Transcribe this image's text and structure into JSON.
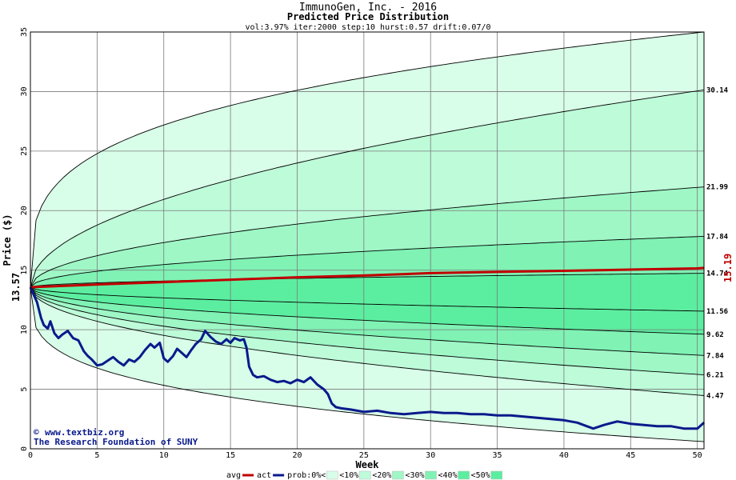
{
  "chart_data": {
    "type": "area",
    "title": "ImmunoGen, Inc. - 2016",
    "subtitle": "Predicted Price Distribution",
    "params": "vol:3.97% iter:2000 step:10 hurst:0.57 drift:0.07/0",
    "xlabel": "Week",
    "ylabel": "Price ($)",
    "xlim": [
      0,
      50.5
    ],
    "ylim": [
      0,
      35
    ],
    "xticks": [
      0,
      5,
      10,
      15,
      20,
      25,
      30,
      35,
      40,
      45,
      50
    ],
    "yticks": [
      0,
      5,
      10,
      15,
      20,
      25,
      30,
      35
    ],
    "grid": true,
    "start_price": 13.57,
    "start_price_label": "13.57",
    "end_avg_label": "15.19",
    "percentile_labels": [
      "30.14",
      "21.99",
      "17.84",
      "14.74",
      "11.56",
      "9.62",
      "7.84",
      "6.21",
      "4.47"
    ],
    "percentile_ends": [
      30.14,
      21.99,
      17.84,
      14.74,
      11.56,
      9.62,
      7.84,
      6.21,
      4.47
    ],
    "outer_ends": [
      35,
      0.6
    ],
    "band_colors": [
      "#f0fff0",
      "#d8fde8",
      "#bdfbd9",
      "#9ff7c6",
      "#7ff2b4",
      "#5ceea0"
    ],
    "series": [
      {
        "name": "avg",
        "color": "#c00000",
        "points": [
          [
            0,
            13.57
          ],
          [
            5,
            13.8
          ],
          [
            10,
            14.0
          ],
          [
            15,
            14.2
          ],
          [
            20,
            14.4
          ],
          [
            25,
            14.55
          ],
          [
            30,
            14.75
          ],
          [
            35,
            14.85
          ],
          [
            40,
            14.95
          ],
          [
            45,
            15.05
          ],
          [
            50,
            15.15
          ],
          [
            50.5,
            15.19
          ]
        ]
      },
      {
        "name": "act",
        "color": "#0a1a8c",
        "points": [
          [
            0,
            13.57
          ],
          [
            0.5,
            12.3
          ],
          [
            0.8,
            11.0
          ],
          [
            1.0,
            10.4
          ],
          [
            1.3,
            10.1
          ],
          [
            1.5,
            10.7
          ],
          [
            1.8,
            9.7
          ],
          [
            2.1,
            9.3
          ],
          [
            2.4,
            9.6
          ],
          [
            2.8,
            9.9
          ],
          [
            3.2,
            9.3
          ],
          [
            3.6,
            9.1
          ],
          [
            4.0,
            8.2
          ],
          [
            4.3,
            7.8
          ],
          [
            4.6,
            7.5
          ],
          [
            5.0,
            7.0
          ],
          [
            5.4,
            7.1
          ],
          [
            5.8,
            7.4
          ],
          [
            6.2,
            7.7
          ],
          [
            6.6,
            7.3
          ],
          [
            7.0,
            7.0
          ],
          [
            7.4,
            7.5
          ],
          [
            7.8,
            7.3
          ],
          [
            8.2,
            7.7
          ],
          [
            8.6,
            8.3
          ],
          [
            9.0,
            8.8
          ],
          [
            9.3,
            8.5
          ],
          [
            9.7,
            8.9
          ],
          [
            10.0,
            7.6
          ],
          [
            10.3,
            7.3
          ],
          [
            10.7,
            7.8
          ],
          [
            11.0,
            8.4
          ],
          [
            11.3,
            8.1
          ],
          [
            11.7,
            7.7
          ],
          [
            12.0,
            8.2
          ],
          [
            12.4,
            8.8
          ],
          [
            12.8,
            9.2
          ],
          [
            13.1,
            9.9
          ],
          [
            13.5,
            9.4
          ],
          [
            13.9,
            9.0
          ],
          [
            14.3,
            8.8
          ],
          [
            14.7,
            9.2
          ],
          [
            15.0,
            8.9
          ],
          [
            15.3,
            9.3
          ],
          [
            15.7,
            9.1
          ],
          [
            16.0,
            9.2
          ],
          [
            16.2,
            8.5
          ],
          [
            16.4,
            6.9
          ],
          [
            16.7,
            6.2
          ],
          [
            17.0,
            6.0
          ],
          [
            17.5,
            6.1
          ],
          [
            18.0,
            5.8
          ],
          [
            18.5,
            5.6
          ],
          [
            19.0,
            5.7
          ],
          [
            19.5,
            5.5
          ],
          [
            20.0,
            5.8
          ],
          [
            20.5,
            5.6
          ],
          [
            21.0,
            6.0
          ],
          [
            21.5,
            5.4
          ],
          [
            22.0,
            5.0
          ],
          [
            22.3,
            4.6
          ],
          [
            22.6,
            3.8
          ],
          [
            22.9,
            3.5
          ],
          [
            23.3,
            3.4
          ],
          [
            24.0,
            3.3
          ],
          [
            25.0,
            3.1
          ],
          [
            26.0,
            3.2
          ],
          [
            27.0,
            3.0
          ],
          [
            28.0,
            2.9
          ],
          [
            29.0,
            3.0
          ],
          [
            30.0,
            3.1
          ],
          [
            31.0,
            3.0
          ],
          [
            32.0,
            3.0
          ],
          [
            33.0,
            2.9
          ],
          [
            34.0,
            2.9
          ],
          [
            35.0,
            2.8
          ],
          [
            36.0,
            2.8
          ],
          [
            37.0,
            2.7
          ],
          [
            38.0,
            2.6
          ],
          [
            39.0,
            2.5
          ],
          [
            40.0,
            2.4
          ],
          [
            41.0,
            2.2
          ],
          [
            41.7,
            1.9
          ],
          [
            42.2,
            1.7
          ],
          [
            43.0,
            2.0
          ],
          [
            44.0,
            2.3
          ],
          [
            45.0,
            2.1
          ],
          [
            46.0,
            2.0
          ],
          [
            47.0,
            1.9
          ],
          [
            48.0,
            1.9
          ],
          [
            49.0,
            1.7
          ],
          [
            50.0,
            1.7
          ],
          [
            50.5,
            2.2
          ]
        ]
      }
    ],
    "legend": [
      "avg",
      "act",
      "prob:0%<",
      "<10%",
      "<20%",
      "<30%",
      "<40%",
      "<50%"
    ],
    "credit_line1": "www.textbiz.org",
    "credit_line2": "The Research Foundation of SUNY",
    "credit_symbol": "©"
  }
}
